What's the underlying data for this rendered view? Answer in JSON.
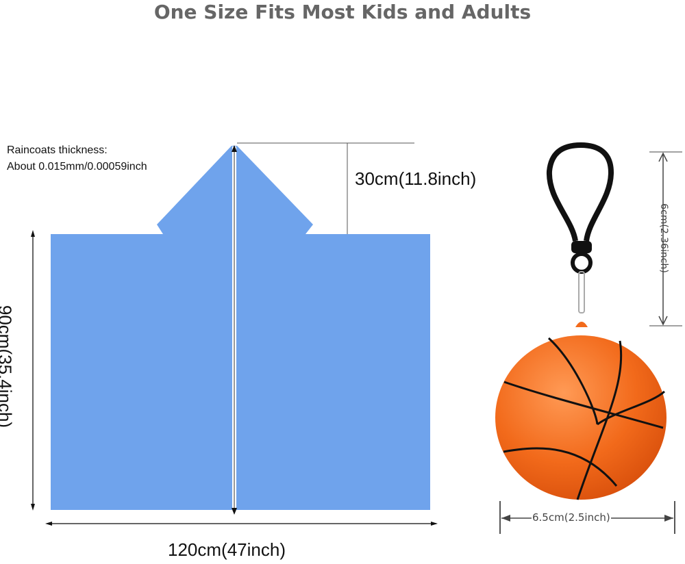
{
  "title": "One Size Fits Most Kids and Adults",
  "raincoat": {
    "thickness_label": "Raincoats thickness:",
    "thickness_value": "About 0.015mm/0.00059inch",
    "hood_dimension": "30cm(11.8inch)",
    "height_dimension": "90cm(35.4inch)",
    "width_dimension": "120cm(47inch)",
    "color": "#6fa3ec"
  },
  "keychain": {
    "height_dimension": "6cm(2.36inch)",
    "width_dimension": "6.5cm(2.5inch)",
    "ball_color": "#f26a1b",
    "clip_color": "#111111"
  }
}
